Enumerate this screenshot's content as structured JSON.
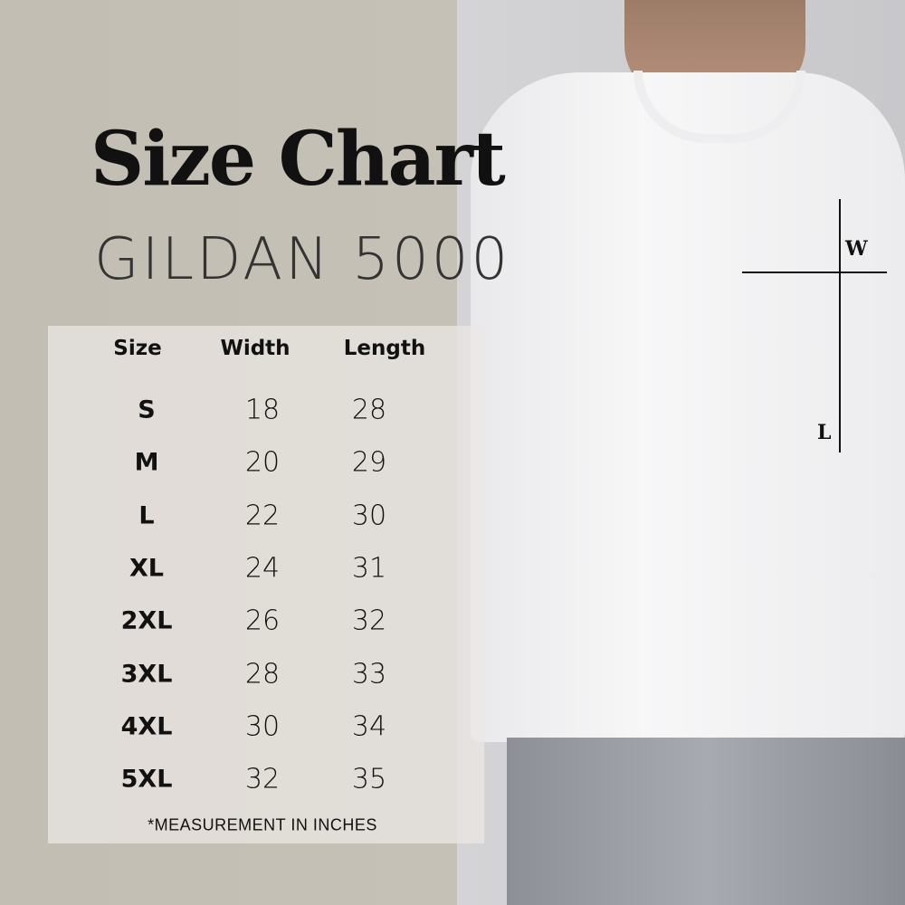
{
  "title": "Size Chart",
  "subtitle": "GILDAN 5000",
  "table": {
    "headers": [
      "Size",
      "Width",
      "Length"
    ],
    "rows": [
      {
        "size": "S",
        "width": "18",
        "length": "28"
      },
      {
        "size": "M",
        "width": "20",
        "length": "29"
      },
      {
        "size": "L",
        "width": "22",
        "length": "30"
      },
      {
        "size": "XL",
        "width": "24",
        "length": "31"
      },
      {
        "size": "2XL",
        "width": "26",
        "length": "32"
      },
      {
        "size": "3XL",
        "width": "28",
        "length": "33"
      },
      {
        "size": "4XL",
        "width": "30",
        "length": "34"
      },
      {
        "size": "5XL",
        "width": "32",
        "length": "35"
      }
    ]
  },
  "footnote": "*MEASUREMENT IN INCHES",
  "markers": {
    "width": "W",
    "length": "L"
  }
}
